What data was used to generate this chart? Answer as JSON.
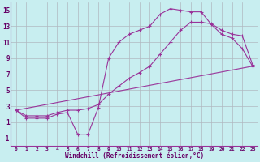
{
  "xlabel": "Windchill (Refroidissement éolien,°C)",
  "bg_color": "#c8eef0",
  "grid_color": "#b0b8c0",
  "line_color": "#993399",
  "xlim": [
    -0.5,
    23.5
  ],
  "ylim": [
    -2,
    16
  ],
  "xticks": [
    0,
    1,
    2,
    3,
    4,
    5,
    6,
    7,
    8,
    9,
    10,
    11,
    12,
    13,
    14,
    15,
    16,
    17,
    18,
    19,
    20,
    21,
    22,
    23
  ],
  "yticks": [
    -1,
    1,
    3,
    5,
    7,
    9,
    11,
    13,
    15
  ],
  "line1_x": [
    0,
    1,
    2,
    3,
    4,
    5,
    6,
    7,
    8,
    9,
    10,
    11,
    12,
    13,
    14,
    15,
    16,
    17,
    18,
    19,
    20,
    21,
    22,
    23
  ],
  "line1_y": [
    2.5,
    1.5,
    1.5,
    1.5,
    2.0,
    2.2,
    -0.5,
    -0.5,
    2.8,
    9.0,
    11.0,
    12.0,
    12.5,
    13.0,
    14.5,
    15.2,
    15.0,
    14.8,
    14.8,
    13.2,
    12.0,
    11.5,
    10.2,
    8.0
  ],
  "line2_x": [
    0,
    23
  ],
  "line2_y": [
    2.5,
    8.0
  ],
  "line3_x": [
    0,
    1,
    2,
    3,
    4,
    5,
    6,
    7,
    8,
    9,
    10,
    11,
    12,
    13,
    14,
    15,
    16,
    17,
    18,
    19,
    20,
    21,
    22,
    23
  ],
  "line3_y": [
    2.5,
    1.8,
    1.8,
    1.8,
    2.2,
    2.5,
    2.5,
    2.7,
    3.2,
    4.5,
    5.5,
    6.5,
    7.2,
    8.0,
    9.5,
    11.0,
    12.5,
    13.5,
    13.5,
    13.3,
    12.5,
    12.0,
    11.8,
    8.2
  ]
}
